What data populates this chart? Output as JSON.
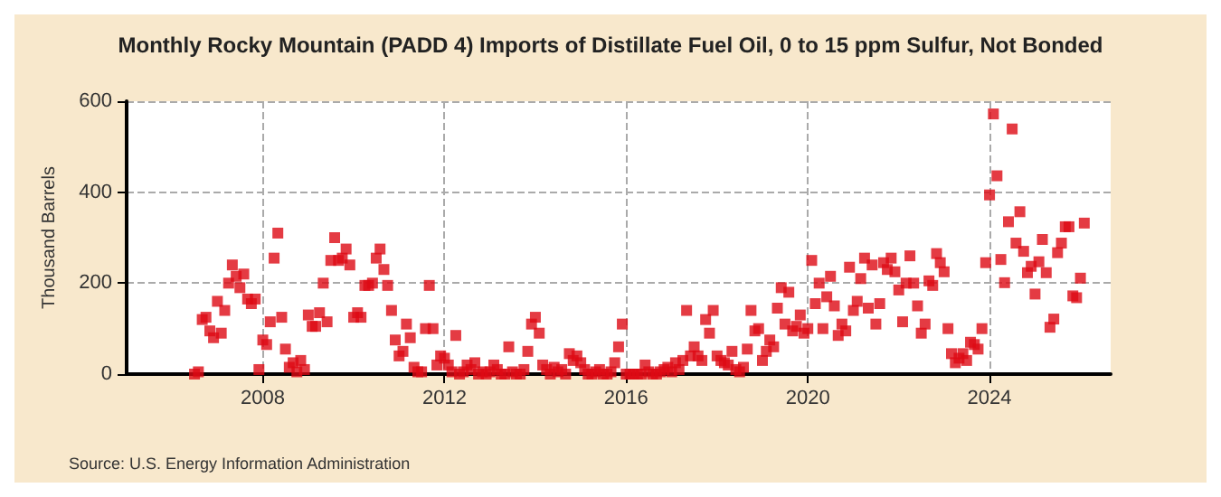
{
  "chart_data": {
    "type": "scatter",
    "title": "Monthly Rocky Mountain (PADD 4) Imports of Distillate Fuel Oil, 0 to 15 ppm Sulfur, Not Bonded",
    "ylabel": "Thousand Barrels",
    "annotations": [
      "Source: U.S. Energy Information Administration"
    ],
    "marker": "square",
    "grid": true,
    "xlim": [
      "2005-01",
      "2026-09"
    ],
    "xticks": [
      "2008",
      "2012",
      "2016",
      "2020",
      "2024"
    ],
    "ylim": [
      0,
      600
    ],
    "yticks": [
      0,
      200,
      400,
      600
    ],
    "x": [
      "2006-07",
      "2006-08",
      "2006-09",
      "2006-10",
      "2006-11",
      "2006-12",
      "2007-01",
      "2007-02",
      "2007-03",
      "2007-04",
      "2007-05",
      "2007-06",
      "2007-07",
      "2007-08",
      "2007-09",
      "2007-10",
      "2007-11",
      "2007-12",
      "2008-01",
      "2008-02",
      "2008-03",
      "2008-04",
      "2008-05",
      "2008-06",
      "2008-07",
      "2008-08",
      "2008-09",
      "2008-10",
      "2008-11",
      "2008-12",
      "2009-01",
      "2009-02",
      "2009-03",
      "2009-04",
      "2009-05",
      "2009-06",
      "2009-07",
      "2009-08",
      "2009-09",
      "2009-10",
      "2009-11",
      "2009-12",
      "2010-01",
      "2010-02",
      "2010-03",
      "2010-04",
      "2010-05",
      "2010-06",
      "2010-07",
      "2010-08",
      "2010-09",
      "2010-10",
      "2010-11",
      "2010-12",
      "2011-01",
      "2011-02",
      "2011-03",
      "2011-04",
      "2011-05",
      "2011-06",
      "2011-07",
      "2011-08",
      "2011-09",
      "2011-10",
      "2011-11",
      "2011-12",
      "2012-01",
      "2012-02",
      "2012-03",
      "2012-04",
      "2012-05",
      "2012-06",
      "2012-07",
      "2012-08",
      "2012-09",
      "2012-10",
      "2012-11",
      "2012-12",
      "2013-01",
      "2013-02",
      "2013-03",
      "2013-04",
      "2013-05",
      "2013-06",
      "2013-07",
      "2013-08",
      "2013-09",
      "2013-10",
      "2013-11",
      "2013-12",
      "2014-01",
      "2014-02",
      "2014-03",
      "2014-04",
      "2014-05",
      "2014-06",
      "2014-07",
      "2014-08",
      "2014-09",
      "2014-10",
      "2014-11",
      "2014-12",
      "2015-01",
      "2015-02",
      "2015-03",
      "2015-04",
      "2015-05",
      "2015-06",
      "2015-07",
      "2015-08",
      "2015-09",
      "2015-10",
      "2015-11",
      "2015-12",
      "2016-01",
      "2016-02",
      "2016-03",
      "2016-04",
      "2016-05",
      "2016-06",
      "2016-07",
      "2016-08",
      "2016-09",
      "2016-10",
      "2016-11",
      "2016-12",
      "2017-01",
      "2017-02",
      "2017-03",
      "2017-04",
      "2017-05",
      "2017-06",
      "2017-07",
      "2017-08",
      "2017-09",
      "2017-10",
      "2017-11",
      "2017-12",
      "2018-01",
      "2018-02",
      "2018-03",
      "2018-04",
      "2018-05",
      "2018-06",
      "2018-07",
      "2018-08",
      "2018-09",
      "2018-10",
      "2018-11",
      "2018-12",
      "2019-01",
      "2019-02",
      "2019-03",
      "2019-04",
      "2019-05",
      "2019-06",
      "2019-07",
      "2019-08",
      "2019-09",
      "2019-10",
      "2019-11",
      "2019-12",
      "2020-01",
      "2020-02",
      "2020-03",
      "2020-04",
      "2020-05",
      "2020-06",
      "2020-07",
      "2020-08",
      "2020-09",
      "2020-10",
      "2020-11",
      "2020-12",
      "2021-01",
      "2021-02",
      "2021-03",
      "2021-04",
      "2021-05",
      "2021-06",
      "2021-07",
      "2021-08",
      "2021-09",
      "2021-10",
      "2021-11",
      "2021-12",
      "2022-01",
      "2022-02",
      "2022-03",
      "2022-04",
      "2022-05",
      "2022-06",
      "2022-07",
      "2022-08",
      "2022-09",
      "2022-10",
      "2022-11",
      "2022-12",
      "2023-01",
      "2023-02",
      "2023-03",
      "2023-04",
      "2023-05",
      "2023-06",
      "2023-07",
      "2023-08",
      "2023-09",
      "2023-10",
      "2023-11",
      "2023-12",
      "2024-01",
      "2024-02",
      "2024-03",
      "2024-04",
      "2024-05",
      "2024-06",
      "2024-07",
      "2024-08",
      "2024-09",
      "2024-10",
      "2024-11",
      "2024-12",
      "2025-01",
      "2025-02",
      "2025-03",
      "2025-04",
      "2025-05",
      "2025-06",
      "2025-07",
      "2025-08",
      "2025-09",
      "2025-10",
      "2025-11",
      "2025-12",
      "2026-01",
      "2026-02"
    ],
    "series": [
      {
        "color": "#dd0a14",
        "values": [
          0,
          5,
          120,
          125,
          95,
          80,
          160,
          90,
          140,
          200,
          240,
          215,
          190,
          220,
          165,
          155,
          165,
          10,
          75,
          65,
          115,
          255,
          310,
          125,
          55,
          15,
          25,
          5,
          30,
          10,
          130,
          105,
          105,
          135,
          200,
          115,
          250,
          300,
          250,
          255,
          275,
          240,
          125,
          135,
          125,
          195,
          195,
          200,
          255,
          275,
          230,
          195,
          140,
          75,
          40,
          50,
          110,
          80,
          15,
          5,
          5,
          100,
          195,
          100,
          20,
          40,
          35,
          20,
          5,
          85,
          0,
          5,
          20,
          10,
          25,
          0,
          5,
          0,
          5,
          20,
          10,
          0,
          0,
          60,
          5,
          0,
          0,
          10,
          50,
          110,
          125,
          90,
          20,
          10,
          0,
          15,
          5,
          10,
          0,
          45,
          30,
          40,
          25,
          10,
          0,
          0,
          5,
          10,
          0,
          0,
          5,
          25,
          60,
          110,
          0,
          0,
          0,
          0,
          0,
          20,
          5,
          0,
          0,
          5,
          10,
          15,
          5,
          25,
          10,
          30,
          140,
          40,
          60,
          40,
          30,
          120,
          90,
          140,
          40,
          30,
          25,
          20,
          50,
          10,
          5,
          15,
          55,
          140,
          95,
          100,
          30,
          50,
          75,
          60,
          145,
          190,
          110,
          180,
          95,
          105,
          130,
          90,
          100,
          250,
          155,
          200,
          100,
          170,
          215,
          150,
          85,
          110,
          95,
          235,
          140,
          160,
          210,
          255,
          145,
          240,
          110,
          155,
          245,
          230,
          255,
          225,
          185,
          115,
          200,
          260,
          200,
          150,
          90,
          110,
          205,
          195,
          265,
          245,
          225,
          100,
          45,
          25,
          35,
          45,
          30,
          70,
          65,
          55,
          100,
          245,
          394,
          572,
          436,
          252,
          201,
          335,
          539,
          288,
          357,
          270,
          223,
          237,
          176,
          247,
          296,
          223,
          103,
          121,
          267,
          288,
          324,
          324,
          172,
          168,
          211,
          332
        ]
      }
    ]
  }
}
